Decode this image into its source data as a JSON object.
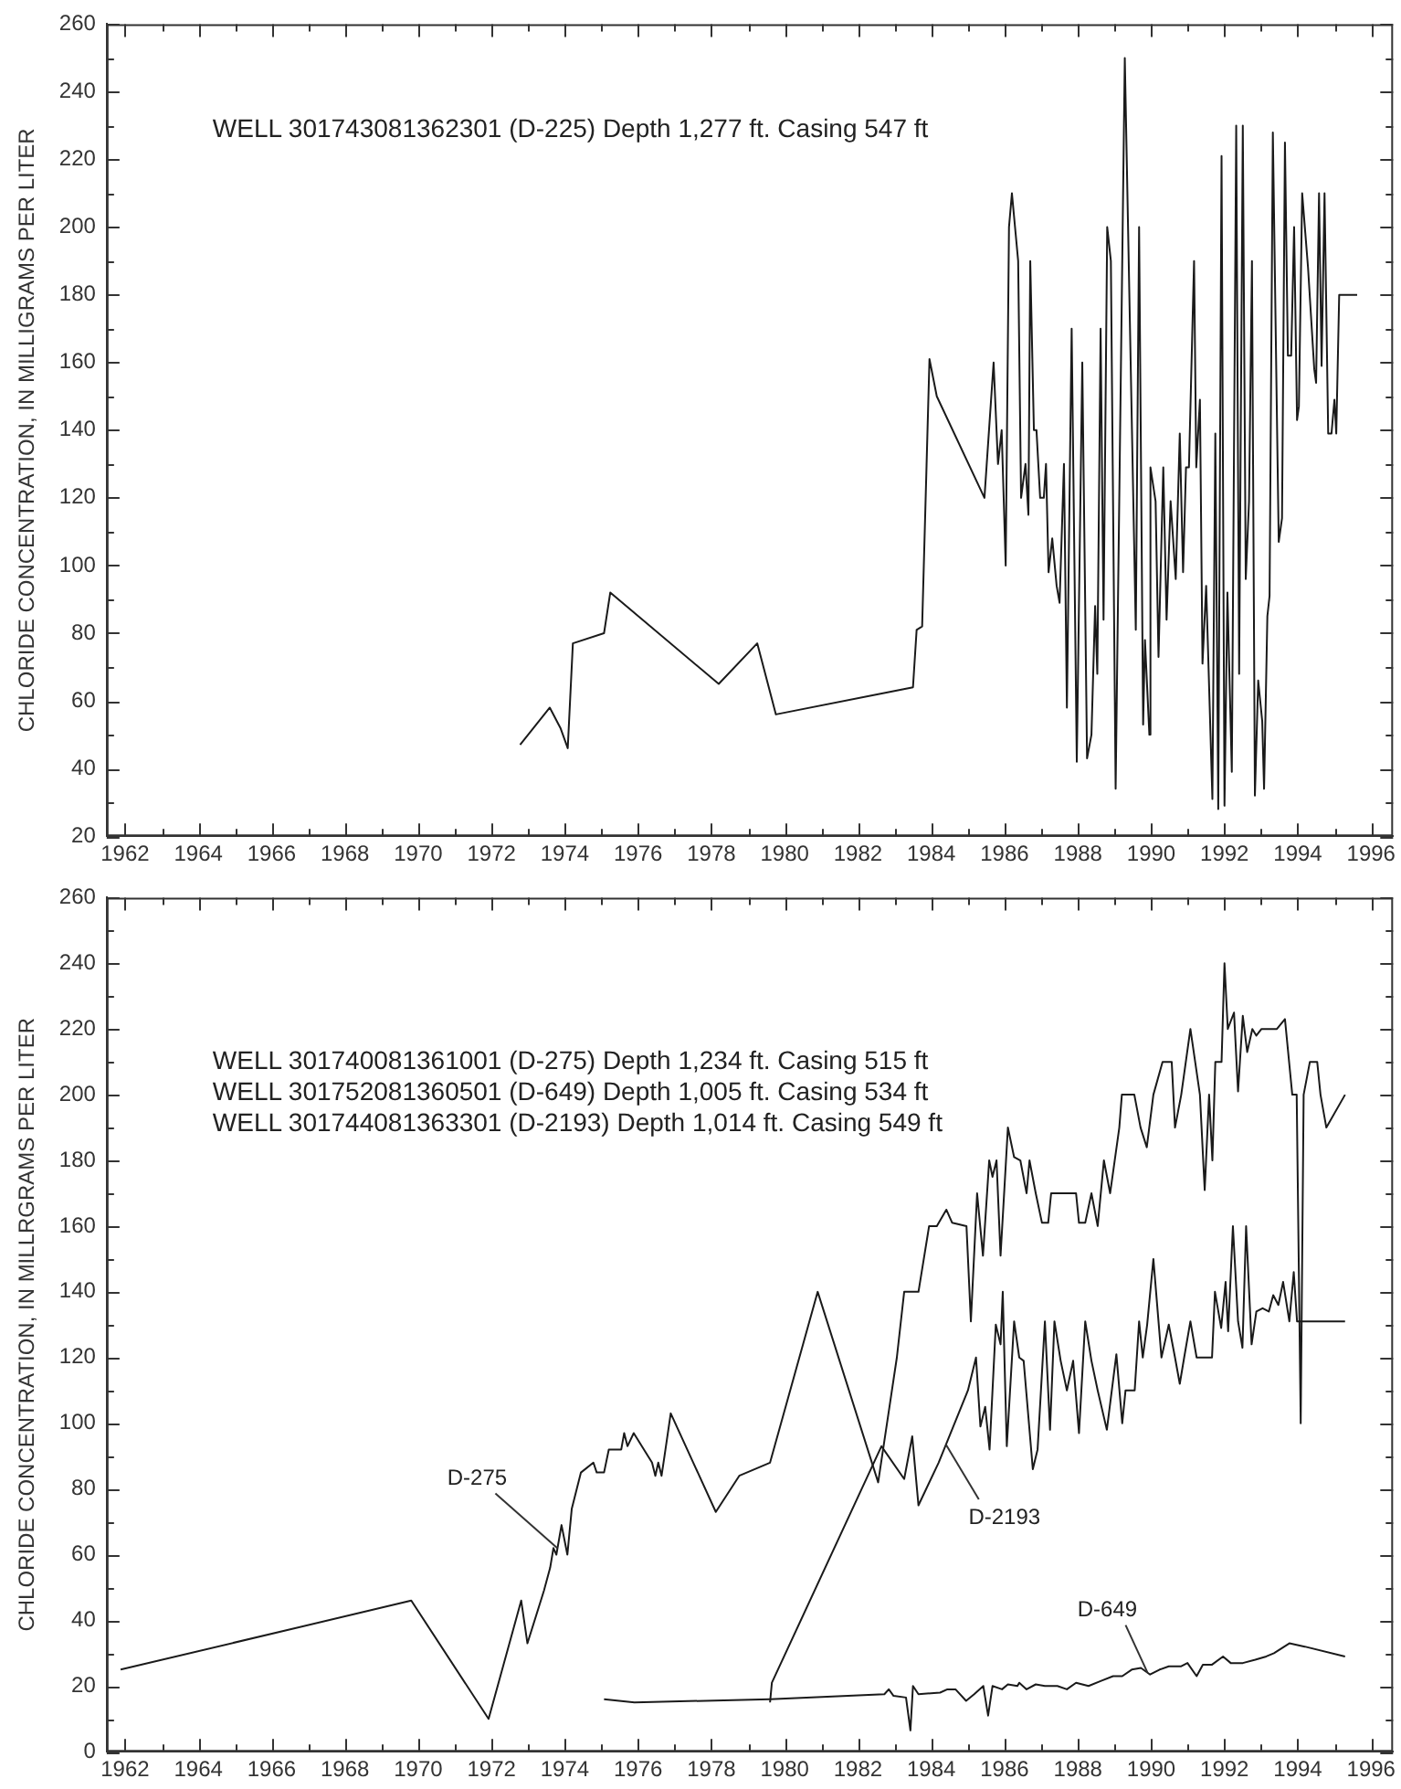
{
  "chart_data": [
    {
      "type": "line",
      "ylabel": "CHLORIDE CONCENTRATION, IN MILLIGRAMS PER LITER",
      "annotations": [
        "WELL 301743081362301 (D-225) Depth 1,277 ft. Casing 547 ft"
      ],
      "grid": false,
      "legend": false,
      "marker": "none",
      "line_style": "solid",
      "xlim": [
        1961.5,
        1996.6
      ],
      "xticks": [
        1962,
        {
          "value": 1963,
          "label": null
        },
        1964,
        {
          "value": 1965,
          "label": null
        },
        1966,
        {
          "value": 1967,
          "label": null
        },
        1968,
        {
          "value": 1969,
          "label": null
        },
        1970,
        {
          "value": 1971,
          "label": null
        },
        1972,
        {
          "value": 1973,
          "label": null
        },
        1974,
        {
          "value": 1975,
          "label": null
        },
        1976,
        {
          "value": 1977,
          "label": null
        },
        1978,
        {
          "value": 1979,
          "label": null
        },
        1980,
        {
          "value": 1981,
          "label": null
        },
        1982,
        {
          "value": 1983,
          "label": null
        },
        1984,
        {
          "value": 1985,
          "label": null
        },
        1986,
        {
          "value": 1987,
          "label": null
        },
        1988,
        {
          "value": 1989,
          "label": null
        },
        1990,
        {
          "value": 1991,
          "label": null
        },
        1992,
        {
          "value": 1993,
          "label": null
        },
        1994,
        {
          "value": 1995,
          "label": null
        },
        1996
      ],
      "ylim": [
        20,
        260
      ],
      "yticks": [
        20,
        {
          "value": 30,
          "label": null
        },
        40,
        {
          "value": 50,
          "label": null
        },
        60,
        {
          "value": 70,
          "label": null
        },
        80,
        {
          "value": 90,
          "label": null
        },
        100,
        {
          "value": 110,
          "label": null
        },
        120,
        {
          "value": 130,
          "label": null
        },
        140,
        {
          "value": 150,
          "label": null
        },
        160,
        {
          "value": 170,
          "label": null
        },
        180,
        {
          "value": 190,
          "label": null
        },
        200,
        {
          "value": 210,
          "label": null
        },
        220,
        {
          "value": 230,
          "label": null
        },
        240,
        {
          "value": 250,
          "label": null
        },
        260
      ],
      "series": [
        {
          "color": "#1a1a1a",
          "x": [
            1972.78,
            1973.59,
            1973.88,
            1974.08,
            1974.22,
            1975.07,
            1975.24,
            1978.2,
            1979.25,
            1979.76,
            1983.5,
            1983.6,
            1983.75,
            1983.95,
            1984.15,
            1985.45,
            1985.7,
            1985.82,
            1985.92,
            1986.03,
            1986.12,
            1986.2,
            1986.37,
            1986.45,
            1986.57,
            1986.65,
            1986.7,
            1986.8,
            1986.87,
            1986.97,
            1987.07,
            1987.13,
            1987.2,
            1987.3,
            1987.42,
            1987.5,
            1987.62,
            1987.7,
            1987.83,
            1987.97,
            1988.12,
            1988.25,
            1988.37,
            1988.47,
            1988.53,
            1988.62,
            1988.7,
            1988.8,
            1988.9,
            1989.03,
            1989.28,
            1989.58,
            1989.67,
            1989.78,
            1989.83,
            1989.95,
            1989.98,
            1990.12,
            1990.2,
            1990.33,
            1990.42,
            1990.53,
            1990.67,
            1990.78,
            1990.87,
            1990.95,
            1991.03,
            1991.17,
            1991.23,
            1991.33,
            1991.4,
            1991.5,
            1991.67,
            1991.75,
            1991.83,
            1991.92,
            1992.0,
            1992.08,
            1992.2,
            1992.32,
            1992.4,
            1992.5,
            1992.58,
            1992.67,
            1992.75,
            1992.83,
            1992.92,
            1993.03,
            1993.08,
            1993.17,
            1993.23,
            1993.32,
            1993.48,
            1993.57,
            1993.65,
            1993.73,
            1993.82,
            1993.9,
            1993.98,
            1994.03,
            1994.12,
            1994.28,
            1994.45,
            1994.5,
            1994.58,
            1994.65,
            1994.73,
            1994.83,
            1994.92,
            1995.0,
            1995.05,
            1995.13,
            1995.62
          ],
          "values": [
            47,
            58,
            52,
            46,
            77,
            80,
            92,
            65,
            77,
            56,
            64,
            81,
            82,
            161,
            150,
            120,
            160,
            130,
            140,
            100,
            200,
            210,
            190,
            120,
            130,
            115,
            190,
            140,
            140,
            120,
            120,
            130,
            98,
            108,
            94,
            89,
            130,
            58,
            170,
            42,
            160,
            43,
            50,
            88,
            68,
            170,
            84,
            200,
            190,
            34,
            250,
            81,
            200,
            53,
            78,
            50,
            129,
            119,
            73,
            129,
            84,
            119,
            96,
            139,
            98,
            129,
            129,
            190,
            129,
            149,
            71,
            94,
            31,
            139,
            28,
            221,
            29,
            92,
            39,
            230,
            68,
            230,
            96,
            119,
            190,
            32,
            66,
            54,
            34,
            85,
            91,
            228,
            107,
            114,
            225,
            162,
            162,
            200,
            143,
            147,
            210,
            188,
            158,
            154,
            210,
            159,
            210,
            139,
            139,
            149,
            139,
            180,
            180
          ]
        }
      ]
    },
    {
      "type": "line",
      "ylabel": "CHLORIDE CONCENTRATION, IN MILLRGRAMS PER LITER",
      "annotations": [
        "WELL 301740081361001 (D-275) Depth 1,234 ft. Casing 515 ft",
        "WELL 301752081360501 (D-649) Depth 1,005 ft. Casing 534 ft",
        "WELL 301744081363301 (D-2193) Depth 1,014 ft. Casing 549 ft"
      ],
      "grid": false,
      "legend": false,
      "marker": "none",
      "line_style": "solid",
      "xlim": [
        1961.5,
        1996.6
      ],
      "xticks": [
        1962,
        {
          "value": 1963,
          "label": null
        },
        1964,
        {
          "value": 1965,
          "label": null
        },
        1966,
        {
          "value": 1967,
          "label": null
        },
        1968,
        {
          "value": 1969,
          "label": null
        },
        1970,
        {
          "value": 1971,
          "label": null
        },
        1972,
        {
          "value": 1973,
          "label": null
        },
        1974,
        {
          "value": 1975,
          "label": null
        },
        1976,
        {
          "value": 1977,
          "label": null
        },
        1978,
        {
          "value": 1979,
          "label": null
        },
        1980,
        {
          "value": 1981,
          "label": null
        },
        1982,
        {
          "value": 1983,
          "label": null
        },
        1984,
        {
          "value": 1985,
          "label": null
        },
        1986,
        {
          "value": 1987,
          "label": null
        },
        1988,
        {
          "value": 1989,
          "label": null
        },
        1990,
        {
          "value": 1991,
          "label": null
        },
        1992,
        {
          "value": 1993,
          "label": null
        },
        1994,
        {
          "value": 1995,
          "label": null
        },
        1996
      ],
      "ylim": [
        0,
        260
      ],
      "yticks": [
        0,
        {
          "value": 10,
          "label": null
        },
        20,
        {
          "value": 30,
          "label": null
        },
        40,
        {
          "value": 50,
          "label": null
        },
        60,
        {
          "value": 70,
          "label": null
        },
        80,
        {
          "value": 90,
          "label": null
        },
        100,
        {
          "value": 110,
          "label": null
        },
        120,
        {
          "value": 130,
          "label": null
        },
        140,
        {
          "value": 150,
          "label": null
        },
        160,
        {
          "value": 170,
          "label": null
        },
        180,
        {
          "value": 190,
          "label": null
        },
        200,
        {
          "value": 210,
          "label": null
        },
        220,
        {
          "value": 230,
          "label": null
        },
        240,
        {
          "value": 250,
          "label": null
        },
        260
      ],
      "series": [
        {
          "name": "D-275",
          "color": "#1a1a1a",
          "x": [
            1961.88,
            1969.81,
            1971.92,
            1972.81,
            1972.98,
            1973.43,
            1973.6,
            1973.69,
            1973.77,
            1973.91,
            1974.07,
            1974.19,
            1974.44,
            1974.78,
            1974.87,
            1975.07,
            1975.2,
            1975.54,
            1975.62,
            1975.71,
            1975.88,
            1976.38,
            1976.47,
            1976.55,
            1976.64,
            1976.72,
            1976.89,
            1978.12,
            1978.76,
            1979.6,
            1980.9,
            1982.55,
            1983.06,
            1983.26,
            1983.65,
            1983.94,
            1984.15,
            1984.41,
            1984.57,
            1984.96,
            1985.08,
            1985.25,
            1985.41,
            1985.58,
            1985.67,
            1985.78,
            1985.89,
            1986.09,
            1986.26,
            1986.43,
            1986.6,
            1986.68,
            1986.85,
            1987.02,
            1987.19,
            1987.27,
            1987.95,
            1988.03,
            1988.2,
            1988.37,
            1988.54,
            1988.71,
            1988.88,
            1989.13,
            1989.2,
            1989.54,
            1989.71,
            1989.88,
            1990.06,
            1990.31,
            1990.56,
            1990.65,
            1990.82,
            1991.07,
            1991.33,
            1991.46,
            1991.58,
            1991.67,
            1991.75,
            1991.92,
            1992.0,
            1992.09,
            1992.26,
            1992.37,
            1992.5,
            1992.62,
            1992.76,
            1992.87,
            1993.01,
            1993.26,
            1993.43,
            1993.65,
            1993.85,
            1993.97,
            1994.08,
            1994.16,
            1994.33,
            1994.53,
            1994.62,
            1994.78,
            1995.29
          ],
          "values": [
            25,
            46,
            10,
            46,
            33,
            49,
            56,
            62,
            60,
            69,
            60,
            74,
            85,
            88,
            85,
            85,
            92,
            92,
            97,
            93,
            97,
            88,
            84,
            88,
            84,
            90,
            103,
            73,
            84,
            88,
            140,
            82,
            120,
            140,
            140,
            160,
            160,
            165,
            161,
            160,
            131,
            170,
            151,
            180,
            175,
            180,
            151,
            190,
            181,
            180,
            170,
            180,
            170,
            161,
            161,
            170,
            170,
            161,
            161,
            170,
            160,
            180,
            170,
            190,
            200,
            200,
            190,
            184,
            200,
            210,
            210,
            190,
            200,
            220,
            200,
            171,
            200,
            180,
            210,
            210,
            240,
            220,
            225,
            201,
            224,
            213,
            220,
            218,
            220,
            220,
            220,
            223,
            200,
            200,
            100,
            200,
            210,
            210,
            200,
            190,
            200
          ]
        },
        {
          "name": "D-649",
          "color": "#1a1a1a",
          "x": [
            1975.07,
            1975.9,
            1979.6,
            1982.72,
            1982.84,
            1982.97,
            1983.31,
            1983.43,
            1983.5,
            1983.65,
            1984.24,
            1984.44,
            1984.66,
            1984.95,
            1985.17,
            1985.42,
            1985.55,
            1985.67,
            1985.93,
            1986.09,
            1986.35,
            1986.4,
            1986.6,
            1986.85,
            1987.1,
            1987.44,
            1987.7,
            1987.95,
            1988.29,
            1988.62,
            1988.96,
            1989.21,
            1989.47,
            1989.72,
            1989.97,
            1990.23,
            1990.48,
            1990.82,
            1990.99,
            1991.24,
            1991.41,
            1991.66,
            1991.96,
            1992.17,
            1992.5,
            1992.84,
            1993.14,
            1993.35,
            1993.77,
            1994.19,
            1995.29
          ],
          "values": [
            16,
            15,
            16,
            17.5,
            19,
            17,
            16.5,
            6.5,
            20,
            17.5,
            18,
            19,
            19,
            15.5,
            17.5,
            20,
            11,
            20,
            19,
            20.5,
            20,
            21,
            19,
            20.5,
            20,
            20,
            19,
            21,
            20,
            21.5,
            23,
            23,
            25,
            25.5,
            23.5,
            25,
            26,
            26,
            27,
            23,
            26.5,
            26.5,
            29,
            27,
            27,
            28,
            29,
            30,
            33,
            32,
            29
          ]
        },
        {
          "name": "D-2193",
          "color": "#1a1a1a",
          "x": [
            1979.6,
            1979.65,
            1982.64,
            1983.26,
            1983.48,
            1983.65,
            1984.2,
            1985.0,
            1985.22,
            1985.34,
            1985.47,
            1985.59,
            1985.76,
            1985.89,
            1985.95,
            1986.0,
            1986.06,
            1986.26,
            1986.4,
            1986.52,
            1986.77,
            1986.9,
            1987.1,
            1987.24,
            1987.36,
            1987.53,
            1987.7,
            1987.87,
            1988.03,
            1988.2,
            1988.37,
            1988.54,
            1988.79,
            1989.05,
            1989.21,
            1989.3,
            1989.55,
            1989.67,
            1989.77,
            1989.89,
            1990.06,
            1990.28,
            1990.48,
            1990.65,
            1990.78,
            1990.9,
            1991.07,
            1991.24,
            1991.41,
            1991.66,
            1991.74,
            1991.91,
            1992.03,
            1992.1,
            1992.23,
            1992.37,
            1992.49,
            1992.59,
            1992.74,
            1992.87,
            1993.04,
            1993.21,
            1993.33,
            1993.47,
            1993.6,
            1993.77,
            1993.89,
            1993.98,
            1995.29
          ],
          "values": [
            15,
            21,
            93,
            83,
            96,
            75,
            88,
            110,
            120,
            99,
            105,
            92,
            130,
            124,
            140,
            118,
            93,
            131,
            120,
            119,
            86,
            92,
            131,
            98,
            131,
            119,
            110,
            119,
            97,
            131,
            119,
            110,
            98,
            121,
            100,
            110,
            110,
            131,
            120,
            130,
            150,
            120,
            130,
            120,
            112,
            120,
            131,
            120,
            120,
            120,
            140,
            129,
            143,
            128,
            160,
            131,
            123,
            160,
            124,
            134,
            135,
            134,
            139,
            136,
            143,
            131,
            146,
            131,
            131
          ]
        }
      ]
    }
  ]
}
